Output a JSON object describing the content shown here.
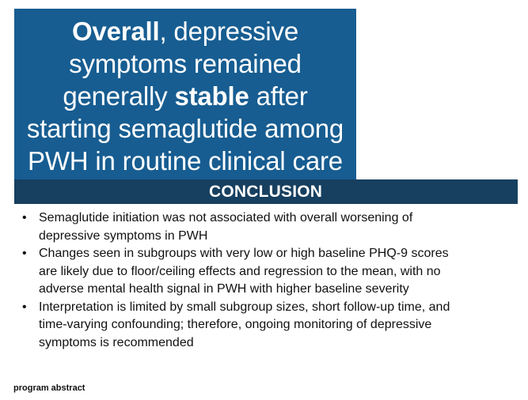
{
  "headline": {
    "line1_bold": "Overall",
    "line1_rest": ", depressive",
    "line2": "symptoms remained",
    "line3_pre": "generally ",
    "line3_bold": "stable",
    "line3_post": " after",
    "line4": "starting semaglutide among",
    "line5": "PWH in routine clinical care"
  },
  "conclusion": {
    "heading": "CONCLUSION",
    "bullets": [
      {
        "line1": "Semaglutide initiation was not associated with overall worsening of",
        "line2": "depressive symptoms in PWH"
      },
      {
        "line1": "Changes seen in subgroups with very low or high baseline PHQ-9 scores",
        "line2": "are likely due to floor/ceiling effects and regression to the mean, with no",
        "line3": "adverse mental health signal in PWH with higher baseline severity"
      },
      {
        "line1": "Interpretation is limited by small subgroup sizes, short follow-up time, and",
        "line2": "time-varying confounding; therefore, ongoing monitoring of depressive",
        "line3": "symptoms is recommended"
      }
    ]
  },
  "footer": {
    "note": "program abstract"
  },
  "colors": {
    "headline_bg": "#175d91",
    "conclusion_bg": "#173f5f",
    "text_on_dark": "#ffffff",
    "body_text": "#111111"
  }
}
